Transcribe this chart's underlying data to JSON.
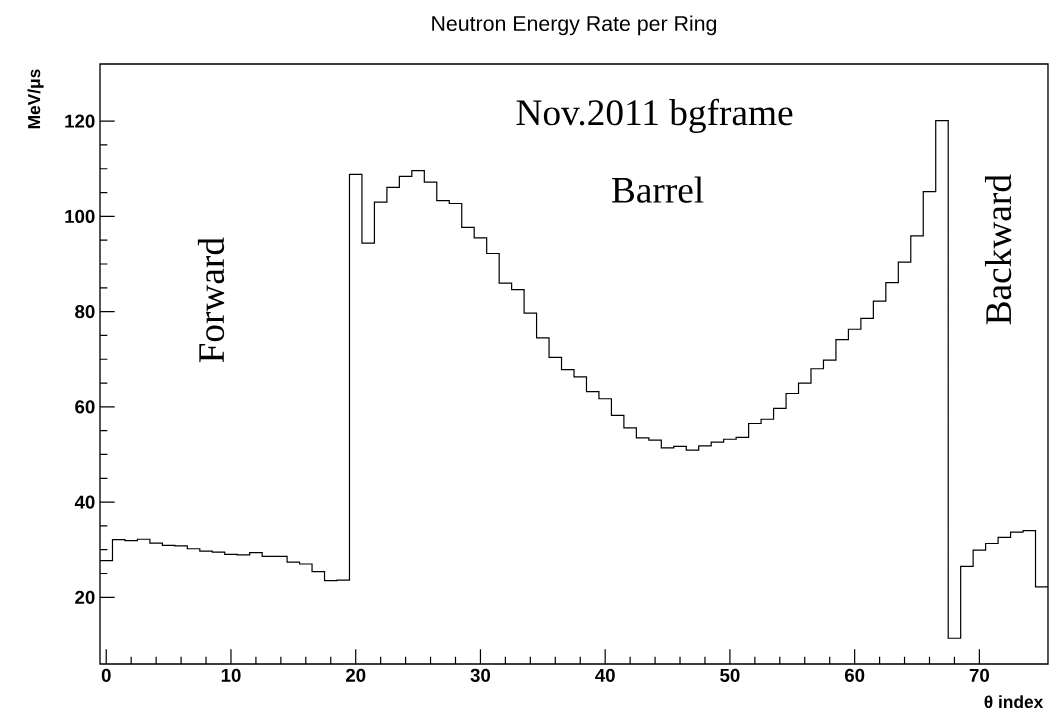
{
  "chart_data": {
    "type": "histogram",
    "title": "Neutron Energy Rate per Ring",
    "xlabel": "θ index",
    "ylabel": "MeV/μs",
    "bins": [
      -0.5,
      0.5,
      1.5,
      2.5,
      3.5,
      4.5,
      5.5,
      6.5,
      7.5,
      8.5,
      9.5,
      10.5,
      11.5,
      12.5,
      13.5,
      14.5,
      15.5,
      16.5,
      17.5,
      18.5,
      19.5,
      20.5,
      21.5,
      22.5,
      23.5,
      24.5,
      25.5,
      26.5,
      27.5,
      28.5,
      29.5,
      30.5,
      31.5,
      32.5,
      33.5,
      34.5,
      35.5,
      36.5,
      37.5,
      38.5,
      39.5,
      40.5,
      41.5,
      42.5,
      43.5,
      44.5,
      45.5,
      46.5,
      47.5,
      48.5,
      49.5,
      50.5,
      51.5,
      52.5,
      53.5,
      54.5,
      55.5,
      56.5,
      57.5,
      58.5,
      59.5,
      60.5,
      61.5,
      62.5,
      63.5,
      64.5,
      65.5,
      66.5,
      67.5,
      68.5,
      69.5,
      70.5,
      71.5,
      72.5,
      73.5,
      74.5,
      75.5
    ],
    "values": [
      27.7,
      32.1,
      31.9,
      32.2,
      31.4,
      30.9,
      30.8,
      30.2,
      29.7,
      29.5,
      29.0,
      28.9,
      29.4,
      28.6,
      28.6,
      27.4,
      27.0,
      25.4,
      23.5,
      23.6,
      108.8,
      94.4,
      103.0,
      106.1,
      108.4,
      109.6,
      107.2,
      103.3,
      102.7,
      97.7,
      95.5,
      92.2,
      86.0,
      84.6,
      79.7,
      74.5,
      70.4,
      67.8,
      66.3,
      63.2,
      61.7,
      58.2,
      55.6,
      53.5,
      53.0,
      51.4,
      51.7,
      50.9,
      51.8,
      52.6,
      53.2,
      53.6,
      56.5,
      57.4,
      59.7,
      62.8,
      65.0,
      68.0,
      69.8,
      74.1,
      76.3,
      78.6,
      82.2,
      86.1,
      90.4,
      95.9,
      105.2,
      120.1,
      11.4,
      26.5,
      29.9,
      31.3,
      32.6,
      33.7,
      34.0,
      22.2
    ],
    "color": "#000000",
    "xlim": [
      -0.5,
      75.5
    ],
    "ylim": [
      6,
      132
    ],
    "xticks": [
      0,
      10,
      20,
      30,
      40,
      50,
      60,
      70
    ],
    "yticks": [
      20,
      40,
      60,
      80,
      100,
      120
    ],
    "annotations": [
      "Nov.2011 bgframe",
      "Barrel",
      "Forward",
      "Backward"
    ]
  }
}
